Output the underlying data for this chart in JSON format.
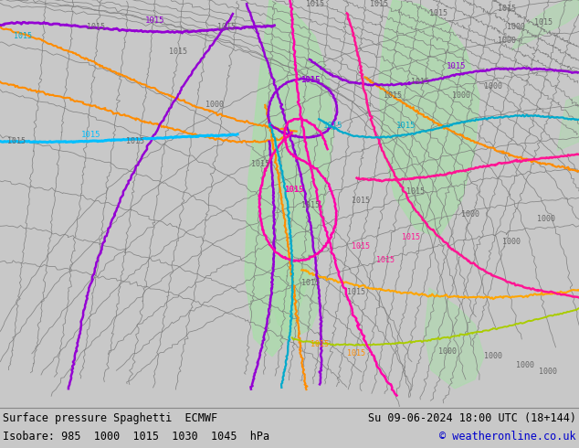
{
  "title_left": "Surface pressure Spaghetti  ECMWF",
  "title_right": "Su 09-06-2024 18:00 UTC (18+144)",
  "subtitle_left": "Isobare: 985  1000  1015  1030  1045  hPa",
  "subtitle_right": "© weatheronline.co.uk",
  "bg_color": "#c8c8c8",
  "map_bg": "#e2e2e2",
  "green_patch_color": "#aaddaa",
  "footer_text_color": "#000000",
  "copyright_color": "#0000cc",
  "fig_width": 6.34,
  "fig_height": 4.9,
  "dpi": 100
}
